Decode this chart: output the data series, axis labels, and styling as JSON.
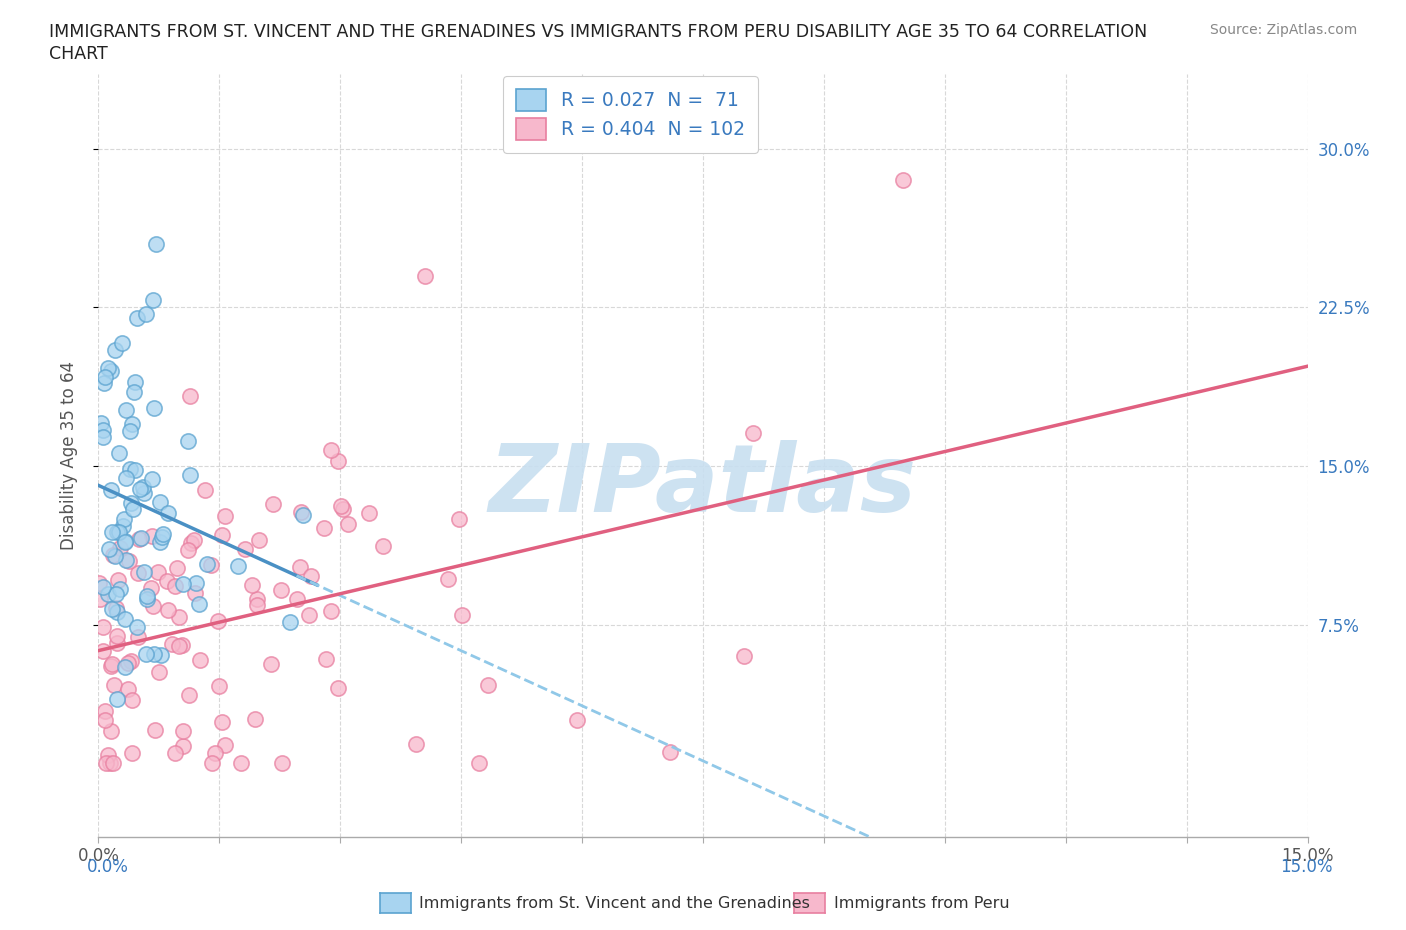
{
  "title_line1": "IMMIGRANTS FROM ST. VINCENT AND THE GRENADINES VS IMMIGRANTS FROM PERU DISABILITY AGE 35 TO 64 CORRELATION",
  "title_line2": "CHART",
  "source_text": "Source: ZipAtlas.com",
  "ylabel": "Disability Age 35 to 64",
  "xlim": [
    0.0,
    0.15
  ],
  "ylim": [
    -0.025,
    0.335
  ],
  "x_ticks": [
    0.0,
    0.015,
    0.03,
    0.045,
    0.06,
    0.075,
    0.09,
    0.105,
    0.12,
    0.135,
    0.15
  ],
  "x_tick_labels_show": [
    "0.0%",
    "",
    "",
    "",
    "",
    "",
    "",
    "",
    "",
    "",
    "15.0%"
  ],
  "y_ticks_right": [
    0.075,
    0.15,
    0.225,
    0.3
  ],
  "y_tick_labels_right": [
    "7.5%",
    "15.0%",
    "22.5%",
    "30.0%"
  ],
  "legend_label1": "R = 0.027  N =  71",
  "legend_label2": "R = 0.404  N = 102",
  "color_blue_fill": "#a8d4f0",
  "color_blue_edge": "#5ba3d0",
  "color_pink_fill": "#f7b8cc",
  "color_pink_edge": "#e87fa0",
  "color_blue_line": "#4a90c4",
  "color_blue_line_dash": "#90c8e8",
  "color_pink_line": "#e06080",
  "watermark_text": "ZIPatlas",
  "watermark_color": "#c8dff0",
  "grid_color": "#d8d8d8",
  "bg_color": "#ffffff",
  "legend_text_color": "#3a7abf",
  "axis_label_color": "#3a7abf",
  "bottom_legend_label1": "Immigrants from St. Vincent and the Grenadines",
  "bottom_legend_label2": "Immigrants from Peru"
}
